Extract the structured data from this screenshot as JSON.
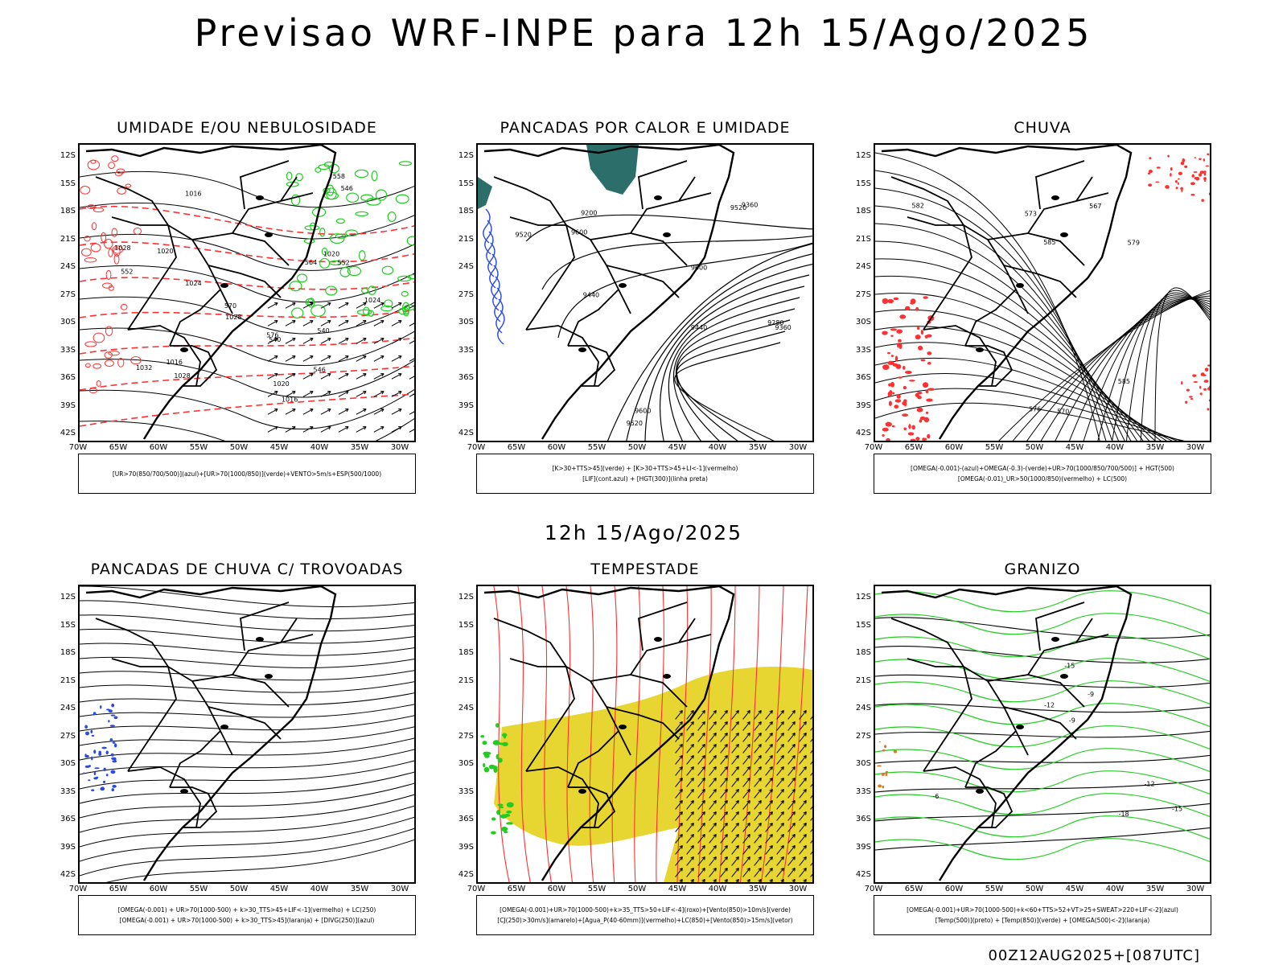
{
  "title": "Previsao WRF-INPE  para 12h 15/Ago/2025",
  "subtitle": "12h 15/Ago/2025",
  "footer": "00Z12AUG2025+[087UTC]",
  "lat_labels": [
    "12S",
    "15S",
    "18S",
    "21S",
    "24S",
    "27S",
    "30S",
    "33S",
    "36S",
    "39S",
    "42S"
  ],
  "lon_labels": [
    "70W",
    "65W",
    "60W",
    "55W",
    "50W",
    "45W",
    "40W",
    "35W",
    "30W"
  ],
  "colors": {
    "red": "#ff3030",
    "green": "#22cc22",
    "blue": "#2a4be0",
    "yellow": "#e7d632",
    "teal": "#2c6e6a",
    "orange": "#d87a2a"
  },
  "panels": [
    {
      "title": "UMIDADE E/OU NEBULOSIDADE",
      "legend": [
        "[UR>70(850/700/500)](azul)+[UR>70(1000/850)](verde)+VENTO>5m/s+ESP(500/1000)"
      ],
      "labels": [
        "1016",
        "1016",
        "1016",
        "1020",
        "1020",
        "1020",
        "1024",
        "1024",
        "1028",
        "1028",
        "1032",
        "1028",
        "570",
        "576",
        "564",
        "558",
        "552",
        "546",
        "540",
        "552",
        "546",
        "540"
      ]
    },
    {
      "title": "PANCADAS POR CALOR E UMIDADE",
      "legend": [
        "[K>30+TTS>45](verde) + [K>30+TTS>45+LI<-1](vermelho)",
        "[LIF](cont.azul) + [HGT(300)](linha preta)"
      ],
      "labels": [
        "9520",
        "9600",
        "9600",
        "9600",
        "9520",
        "9520",
        "9440",
        "9440",
        "9360",
        "9360",
        "9280",
        "9200"
      ]
    },
    {
      "title": "CHUVA",
      "legend": [
        "[OMEGA(-0.001)-(azul)+OMEGA(-0.3)-(verde)+UR>70(1000/850/700/500)] + HGT(500)",
        "[OMEGA(-0.01)_UR>50(1000/850)(vermelho) + LC(500)"
      ],
      "labels": [
        "585",
        "585",
        "582",
        "579",
        "576",
        "573",
        "570",
        "567"
      ]
    },
    {
      "title": "PANCADAS DE CHUVA C/ TROVOADAS",
      "legend": [
        "[OMEGA(-0.001) + UR>70(1000-500) + k>30_TTS>45+LIF<-1](vermelho) + LC(250)",
        "[OMEGA(-0.001) + UR>70(1000-500) + k>30_TTS>45](laranja) + [DIVG(250)](azul)"
      ],
      "labels": []
    },
    {
      "title": "TEMPESTADE",
      "legend": [
        "[OMEGA(-0.001)+UR>70(1000-500)+k>35_TTS>50+LIF<-4](roxo)+[Vento(850)>10m/s](verde)",
        "[CJ(250)>30m/s](amarelo)+[Agua_P(40-60mm)](vermelho)+LC(850)+[Vento(850)>15m/s](vetor)"
      ],
      "labels": []
    },
    {
      "title": "GRANIZO",
      "legend": [
        "[OMEGA(-0.001)+UR>70(1000-500)+k<60+TTS>52+VT>25+SWEAT>220+LIF<-2](azul)",
        "[Temp(500)](preto) + [Temp(850)](verde) + [OMEGA(500)<-2](laranja)"
      ],
      "labels": [
        "-6",
        "-9",
        "-12",
        "-15",
        "-15",
        "-18",
        "-12",
        "-9"
      ]
    }
  ]
}
